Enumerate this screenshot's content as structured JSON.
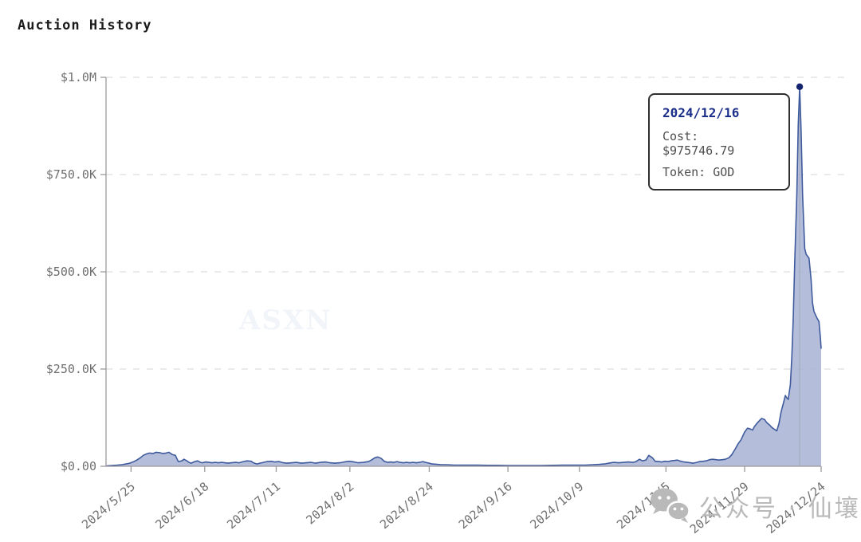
{
  "title": "Auction History",
  "watermarks": {
    "center": "ASXN",
    "bottom_text": "公众号 · 仙壤",
    "bottom_icon": "wechat-icon"
  },
  "tooltip": {
    "date": "2024/12/16",
    "cost_line": "Cost: $975746.79",
    "token_line": "Token: GOD"
  },
  "colors": {
    "line": "#3f5b9d",
    "fill": "#a7b2d3",
    "dot": "#14246e",
    "grid": "#d6d6d6",
    "axis": "#9a9a9a",
    "label": "#707070",
    "crosshair": "#a3a9b8",
    "tooltip_title": "#1b2f8a",
    "tooltip_text": "#4f4f4f",
    "watermark_gray": "#b9b9b9"
  },
  "chart_data": {
    "type": "area",
    "title": "Auction History",
    "legend": "none",
    "grid": "dashed-horizontal",
    "y_axis": {
      "min": 0,
      "max": 1000000,
      "ticks": [
        {
          "label": "$0.00",
          "value": 0
        },
        {
          "label": "$250.0K",
          "value": 250000
        },
        {
          "label": "$500.0K",
          "value": 500000
        },
        {
          "label": "$750.0K",
          "value": 750000
        },
        {
          "label": "$1.0M",
          "value": 1000000
        }
      ]
    },
    "x_axis": {
      "note": "f = fraction of horizontal axis from first to last sample",
      "ticks": [
        {
          "label": "2024/5/25",
          "f": 0.035
        },
        {
          "label": "2024/6/18",
          "f": 0.138
        },
        {
          "label": "2024/7/11",
          "f": 0.238
        },
        {
          "label": "2024/8/2",
          "f": 0.341
        },
        {
          "label": "2024/8/24",
          "f": 0.452
        },
        {
          "label": "2024/9/16",
          "f": 0.562
        },
        {
          "label": "2024/10/9",
          "f": 0.662
        },
        {
          "label": "2024/11/5",
          "f": 0.783
        },
        {
          "label": "2024/11/29",
          "f": 0.893
        },
        {
          "label": "2024/12/24",
          "f": 1.0
        }
      ]
    },
    "highlight": {
      "f": 0.97,
      "value": 975746.79,
      "date": "2024/12/16",
      "token": "GOD"
    },
    "series": [
      {
        "name": "Cost",
        "points": [
          [
            0.0,
            1000
          ],
          [
            0.008,
            2000
          ],
          [
            0.016,
            3000
          ],
          [
            0.022,
            4000
          ],
          [
            0.028,
            6000
          ],
          [
            0.033,
            8000
          ],
          [
            0.039,
            12000
          ],
          [
            0.043,
            16000
          ],
          [
            0.048,
            22000
          ],
          [
            0.052,
            28000
          ],
          [
            0.057,
            32000
          ],
          [
            0.061,
            34000
          ],
          [
            0.066,
            33000
          ],
          [
            0.07,
            36000
          ],
          [
            0.075,
            35000
          ],
          [
            0.079,
            33000
          ],
          [
            0.084,
            34000
          ],
          [
            0.088,
            36000
          ],
          [
            0.093,
            30000
          ],
          [
            0.097,
            28000
          ],
          [
            0.101,
            12000
          ],
          [
            0.106,
            14000
          ],
          [
            0.109,
            18000
          ],
          [
            0.113,
            14000
          ],
          [
            0.116,
            10000
          ],
          [
            0.119,
            8000
          ],
          [
            0.124,
            12000
          ],
          [
            0.128,
            14000
          ],
          [
            0.132,
            10000
          ],
          [
            0.135,
            9000
          ],
          [
            0.139,
            11000
          ],
          [
            0.144,
            10000
          ],
          [
            0.148,
            9000
          ],
          [
            0.153,
            10000
          ],
          [
            0.157,
            9000
          ],
          [
            0.162,
            10000
          ],
          [
            0.166,
            9000
          ],
          [
            0.171,
            8000
          ],
          [
            0.175,
            9000
          ],
          [
            0.181,
            10000
          ],
          [
            0.186,
            9000
          ],
          [
            0.192,
            12000
          ],
          [
            0.197,
            14000
          ],
          [
            0.203,
            13000
          ],
          [
            0.206,
            9000
          ],
          [
            0.211,
            6000
          ],
          [
            0.215,
            8000
          ],
          [
            0.22,
            10000
          ],
          [
            0.225,
            12000
          ],
          [
            0.231,
            13000
          ],
          [
            0.236,
            11000
          ],
          [
            0.242,
            12000
          ],
          [
            0.248,
            9000
          ],
          [
            0.253,
            8000
          ],
          [
            0.26,
            9000
          ],
          [
            0.266,
            10000
          ],
          [
            0.273,
            8000
          ],
          [
            0.28,
            9000
          ],
          [
            0.287,
            10000
          ],
          [
            0.293,
            8000
          ],
          [
            0.3,
            10000
          ],
          [
            0.307,
            11000
          ],
          [
            0.313,
            9000
          ],
          [
            0.32,
            8000
          ],
          [
            0.327,
            9000
          ],
          [
            0.333,
            11000
          ],
          [
            0.34,
            13000
          ],
          [
            0.347,
            11000
          ],
          [
            0.353,
            9000
          ],
          [
            0.36,
            10000
          ],
          [
            0.367,
            12000
          ],
          [
            0.371,
            16000
          ],
          [
            0.376,
            22000
          ],
          [
            0.38,
            24000
          ],
          [
            0.385,
            20000
          ],
          [
            0.389,
            13000
          ],
          [
            0.394,
            10000
          ],
          [
            0.398,
            11000
          ],
          [
            0.402,
            10000
          ],
          [
            0.407,
            12000
          ],
          [
            0.411,
            10000
          ],
          [
            0.416,
            9000
          ],
          [
            0.42,
            10000
          ],
          [
            0.425,
            9000
          ],
          [
            0.429,
            10000
          ],
          [
            0.434,
            9000
          ],
          [
            0.438,
            10000
          ],
          [
            0.443,
            12000
          ],
          [
            0.447,
            10000
          ],
          [
            0.452,
            8000
          ],
          [
            0.456,
            6000
          ],
          [
            0.463,
            5000
          ],
          [
            0.469,
            4000
          ],
          [
            0.476,
            4000
          ],
          [
            0.487,
            3000
          ],
          [
            0.498,
            3000
          ],
          [
            0.509,
            3000
          ],
          [
            0.521,
            3000
          ],
          [
            0.534,
            2500
          ],
          [
            0.547,
            2500
          ],
          [
            0.561,
            2000
          ],
          [
            0.576,
            2000
          ],
          [
            0.592,
            2000
          ],
          [
            0.608,
            2000
          ],
          [
            0.623,
            2500
          ],
          [
            0.639,
            3000
          ],
          [
            0.654,
            3000
          ],
          [
            0.67,
            3000
          ],
          [
            0.681,
            4000
          ],
          [
            0.69,
            5000
          ],
          [
            0.697,
            6000
          ],
          [
            0.703,
            8000
          ],
          [
            0.71,
            10000
          ],
          [
            0.717,
            9000
          ],
          [
            0.724,
            10000
          ],
          [
            0.73,
            11000
          ],
          [
            0.737,
            10000
          ],
          [
            0.741,
            12000
          ],
          [
            0.746,
            18000
          ],
          [
            0.75,
            14000
          ],
          [
            0.755,
            16000
          ],
          [
            0.759,
            28000
          ],
          [
            0.764,
            22000
          ],
          [
            0.768,
            13000
          ],
          [
            0.773,
            12000
          ],
          [
            0.777,
            11000
          ],
          [
            0.781,
            13000
          ],
          [
            0.786,
            12000
          ],
          [
            0.79,
            14000
          ],
          [
            0.795,
            15000
          ],
          [
            0.799,
            16000
          ],
          [
            0.804,
            13000
          ],
          [
            0.808,
            11000
          ],
          [
            0.813,
            10000
          ],
          [
            0.817,
            9000
          ],
          [
            0.821,
            8000
          ],
          [
            0.826,
            10000
          ],
          [
            0.83,
            12000
          ],
          [
            0.835,
            13000
          ],
          [
            0.839,
            14000
          ],
          [
            0.844,
            17000
          ],
          [
            0.848,
            18000
          ],
          [
            0.853,
            17000
          ],
          [
            0.857,
            16000
          ],
          [
            0.862,
            17000
          ],
          [
            0.866,
            18000
          ],
          [
            0.871,
            22000
          ],
          [
            0.875,
            30000
          ],
          [
            0.88,
            45000
          ],
          [
            0.884,
            58000
          ],
          [
            0.888,
            68000
          ],
          [
            0.893,
            88000
          ],
          [
            0.897,
            98000
          ],
          [
            0.901,
            96000
          ],
          [
            0.904,
            93000
          ],
          [
            0.907,
            103000
          ],
          [
            0.911,
            112000
          ],
          [
            0.914,
            118000
          ],
          [
            0.917,
            123000
          ],
          [
            0.921,
            120000
          ],
          [
            0.924,
            112000
          ],
          [
            0.928,
            106000
          ],
          [
            0.931,
            100000
          ],
          [
            0.934,
            96000
          ],
          [
            0.938,
            91000
          ],
          [
            0.941,
            110000
          ],
          [
            0.944,
            140000
          ],
          [
            0.948,
            168000
          ],
          [
            0.95,
            182000
          ],
          [
            0.952,
            176000
          ],
          [
            0.954,
            172000
          ],
          [
            0.957,
            210000
          ],
          [
            0.959,
            280000
          ],
          [
            0.961,
            380000
          ],
          [
            0.963,
            520000
          ],
          [
            0.966,
            700000
          ],
          [
            0.968,
            880000
          ],
          [
            0.97,
            975746.79
          ],
          [
            0.972,
            860000
          ],
          [
            0.974,
            700000
          ],
          [
            0.977,
            560000
          ],
          [
            0.979,
            545000
          ],
          [
            0.981,
            540000
          ],
          [
            0.983,
            535000
          ],
          [
            0.986,
            480000
          ],
          [
            0.988,
            420000
          ],
          [
            0.99,
            398000
          ],
          [
            0.992,
            390000
          ],
          [
            0.994,
            382000
          ],
          [
            0.997,
            372000
          ],
          [
            0.999,
            330000
          ],
          [
            1.0,
            302000
          ]
        ]
      }
    ]
  }
}
